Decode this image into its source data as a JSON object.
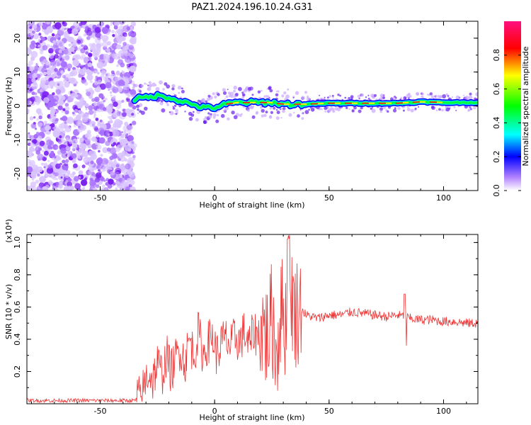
{
  "title": "PAZ1.2024.196.10.24.G31",
  "chart_data": [
    {
      "type": "heatmap",
      "xlabel": "Height of straight line (km)",
      "ylabel": "Frequency (Hz)",
      "xlim": [
        -82,
        115
      ],
      "ylim": [
        -25,
        25
      ],
      "xticks": [
        -50,
        0,
        50,
        100
      ],
      "yticks": [
        -20,
        -10,
        0,
        10,
        20
      ],
      "colorbar": {
        "label": "Normalized spectral amplitude",
        "ticks": [
          "0.0",
          "0.2",
          "0.4",
          "0.6",
          "0.8"
        ],
        "colors": [
          "#ffffff",
          "#b080ff",
          "#0000ff",
          "#00ffff",
          "#00ff00",
          "#ffff00",
          "#ff0000",
          "#ff0080"
        ]
      },
      "trace": {
        "x": [
          -35,
          -30,
          -25,
          -20,
          -15,
          -10,
          -5,
          0,
          5,
          10,
          15,
          20,
          25,
          30,
          35,
          40,
          50,
          60,
          70,
          80,
          90,
          100,
          115
        ],
        "freq": [
          2,
          2.5,
          3,
          2.5,
          1.5,
          0.5,
          -0.5,
          -0.5,
          0.5,
          1,
          1,
          1,
          1,
          0.5,
          0.5,
          0.5,
          0.8,
          0.8,
          0.8,
          0.8,
          1.2,
          1,
          1
        ]
      },
      "noise_region": [
        -82,
        -35
      ]
    },
    {
      "type": "line",
      "xlabel": "Height of straight line (km)",
      "ylabel": "SNR (10 * v/v)",
      "scale_label": "(x10⁴)",
      "xlim": [
        -82,
        115
      ],
      "ylim": [
        0,
        1.05
      ],
      "xticks": [
        -50,
        0,
        50,
        100
      ],
      "yticks": [
        "0.2",
        "0.4",
        "0.6",
        "0.8",
        "1.0"
      ],
      "color": "#ee3333",
      "series": [
        {
          "x": [
            -82,
            -70,
            -60,
            -50,
            -40,
            -35,
            -33,
            -31,
            -29,
            -27,
            -25,
            -23,
            -21,
            -19,
            -17,
            -15,
            -13,
            -11,
            -9,
            -7,
            -5,
            -3,
            -1,
            1,
            3,
            5,
            7,
            9,
            11,
            13,
            15,
            17,
            19,
            21,
            23,
            25,
            27,
            29,
            31,
            33,
            35,
            37,
            40,
            45,
            50,
            55,
            60,
            65,
            70,
            75,
            80,
            85,
            90,
            95,
            100,
            105,
            110,
            115
          ],
          "y": [
            0.02,
            0.02,
            0.02,
            0.02,
            0.02,
            0.02,
            0.04,
            0.1,
            0.2,
            0.15,
            0.25,
            0.18,
            0.3,
            0.2,
            0.28,
            0.35,
            0.25,
            0.4,
            0.3,
            0.45,
            0.3,
            0.38,
            0.42,
            0.3,
            0.38,
            0.4,
            0.35,
            0.42,
            0.38,
            0.45,
            0.35,
            0.45,
            0.42,
            0.48,
            0.4,
            0.55,
            0.3,
            0.6,
            0.5,
            0.75,
            0.55,
            0.6,
            0.55,
            0.53,
            0.55,
            0.55,
            0.57,
            0.56,
            0.55,
            0.54,
            0.55,
            0.53,
            0.52,
            0.52,
            0.51,
            0.51,
            0.5,
            0.5
          ]
        }
      ]
    }
  ]
}
